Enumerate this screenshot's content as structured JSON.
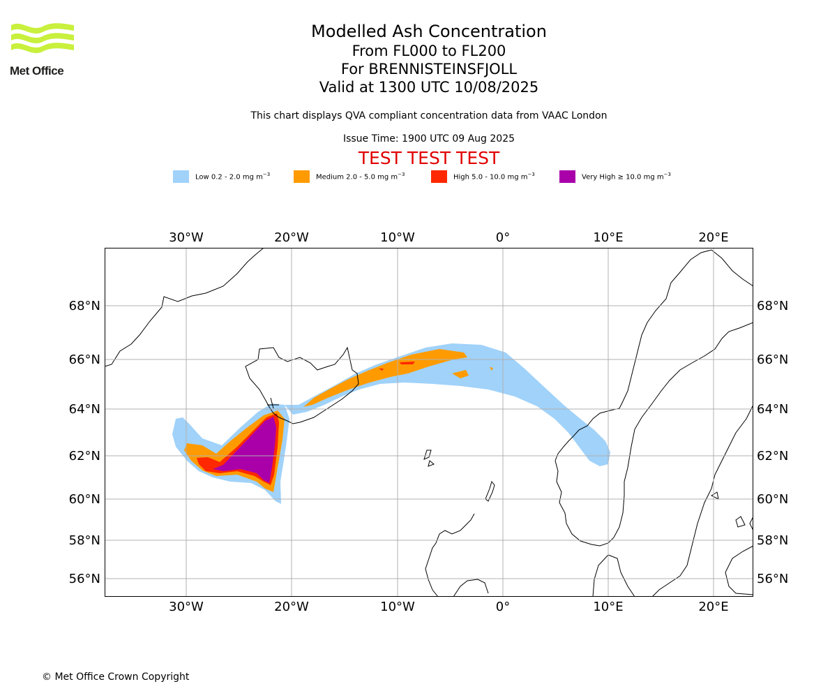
{
  "logo": {
    "text": "Met Office",
    "stripe_color": "#c8f03c"
  },
  "title": {
    "line1": "Modelled Ash Concentration",
    "line2": "From FL000 to FL200",
    "line3": "For BRENNISTEINSFJOLL",
    "line4": "Valid at 1300 UTC 10/08/2025"
  },
  "description": "This chart displays QVA compliant concentration data from VAAC London",
  "issue_time": "Issue Time: 1900 UTC 09 Aug 2025",
  "test_banner": "TEST TEST TEST",
  "legend": [
    {
      "label": "Low 0.2 - 2.0 mg m",
      "exp": "−3",
      "color": "#a0d2fa"
    },
    {
      "label": "Medium 2.0 - 5.0 mg m",
      "exp": "−3",
      "color": "#ff9b00"
    },
    {
      "label": "High 5.0 - 10.0 mg m",
      "exp": "−3",
      "color": "#ff2800"
    },
    {
      "label": "Very High  ≥  10.0 mg m",
      "exp": "−3",
      "color": "#aa00aa"
    }
  ],
  "map": {
    "lon_labels": [
      "30°W",
      "20°W",
      "10°W",
      "0°",
      "10°E",
      "20°E"
    ],
    "lat_labels": [
      "68°N",
      "66°N",
      "64°N",
      "62°N",
      "60°N",
      "58°N",
      "56°N"
    ],
    "grid_color": "#b0b0b0"
  },
  "copyright": "© Met Office Crown Copyright"
}
